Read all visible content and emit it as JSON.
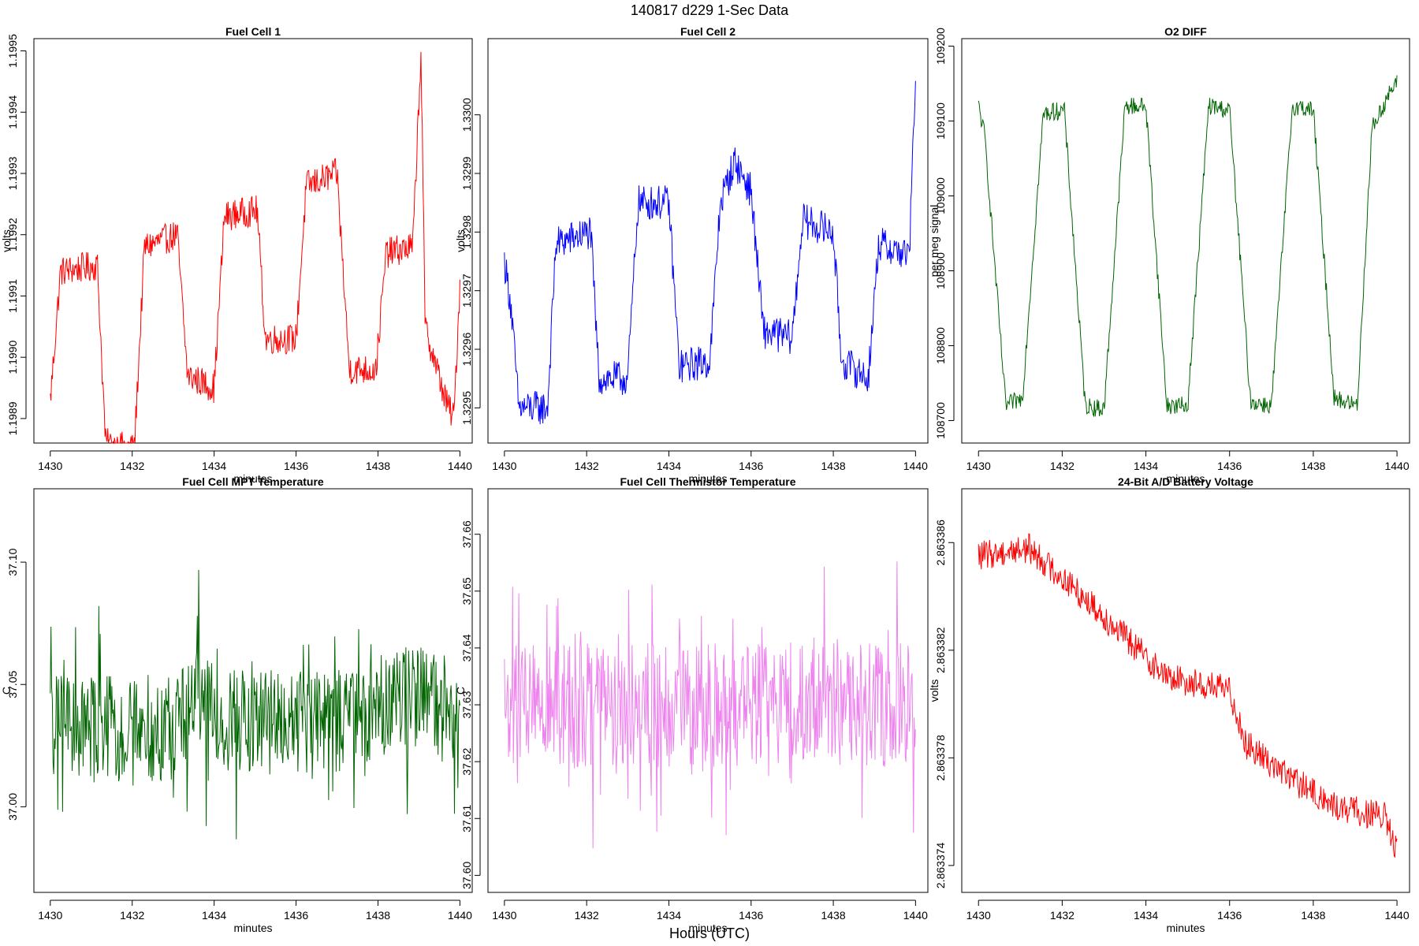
{
  "figure": {
    "title": "140817   d229   1-Sec Data",
    "bottom_label": "Hours (UTC)"
  },
  "chart_data": [
    {
      "type": "line",
      "title": "Fuel Cell 1",
      "xlabel": "minutes",
      "ylabel": "volts",
      "color": "#ff0000",
      "xlim": [
        1429.6,
        1440.3
      ],
      "ylim": [
        1.19886,
        1.19952
      ],
      "xticks": [
        1430,
        1432,
        1434,
        1436,
        1438,
        1440
      ],
      "yticks": [
        1.1989,
        1.199,
        1.1991,
        1.1992,
        1.1993,
        1.1994,
        1.1995
      ],
      "ytick_labels": [
        "1.1989",
        "1.1990",
        "1.1991",
        "1.1992",
        "1.1993",
        "1.1994",
        "1.1995"
      ],
      "n_points": 600,
      "noise": 2.5e-05,
      "segments": [
        [
          1430.0,
          1.19893
        ],
        [
          1430.25,
          1.19914
        ],
        [
          1431.15,
          1.19915
        ],
        [
          1431.35,
          1.19886
        ],
        [
          1432.05,
          1.19885
        ],
        [
          1432.3,
          1.19918
        ],
        [
          1433.1,
          1.1992
        ],
        [
          1433.35,
          1.19897
        ],
        [
          1434.0,
          1.19895
        ],
        [
          1434.25,
          1.19923
        ],
        [
          1435.05,
          1.19924
        ],
        [
          1435.25,
          1.19903
        ],
        [
          1436.0,
          1.19903
        ],
        [
          1436.25,
          1.19928
        ],
        [
          1437.0,
          1.1993
        ],
        [
          1437.3,
          1.19898
        ],
        [
          1437.95,
          1.19898
        ],
        [
          1438.2,
          1.19917
        ],
        [
          1438.85,
          1.19918
        ],
        [
          1439.05,
          1.1995
        ],
        [
          1439.15,
          1.19905
        ],
        [
          1439.65,
          1.19893
        ],
        [
          1439.85,
          1.1989
        ],
        [
          1440.0,
          1.19912
        ]
      ]
    },
    {
      "type": "line",
      "title": "Fuel Cell 2",
      "xlabel": "minutes",
      "ylabel": "volts",
      "color": "#0000ff",
      "xlim": [
        1429.6,
        1440.3
      ],
      "ylim": [
        1.32944,
        1.33013
      ],
      "xticks": [
        1430,
        1432,
        1434,
        1436,
        1438,
        1440
      ],
      "yticks": [
        1.3295,
        1.3296,
        1.3297,
        1.3298,
        1.3299,
        1.33
      ],
      "ytick_labels": [
        "1.3295",
        "1.3296",
        "1.3297",
        "1.3298",
        "1.3299",
        "1.3300"
      ],
      "n_points": 600,
      "noise": 3e-05,
      "segments": [
        [
          1430.0,
          1.32975
        ],
        [
          1430.15,
          1.32968
        ],
        [
          1430.35,
          1.3295
        ],
        [
          1431.05,
          1.3295
        ],
        [
          1431.25,
          1.32978
        ],
        [
          1432.1,
          1.3298
        ],
        [
          1432.3,
          1.32955
        ],
        [
          1433.0,
          1.32955
        ],
        [
          1433.25,
          1.32985
        ],
        [
          1434.0,
          1.32985
        ],
        [
          1434.25,
          1.32957
        ],
        [
          1435.0,
          1.32958
        ],
        [
          1435.25,
          1.32985
        ],
        [
          1435.6,
          1.32992
        ],
        [
          1436.0,
          1.32987
        ],
        [
          1436.3,
          1.32963
        ],
        [
          1437.0,
          1.32962
        ],
        [
          1437.25,
          1.32982
        ],
        [
          1438.0,
          1.3298
        ],
        [
          1438.2,
          1.32958
        ],
        [
          1438.85,
          1.32955
        ],
        [
          1439.1,
          1.32978
        ],
        [
          1439.85,
          1.32976
        ],
        [
          1440.0,
          1.33007
        ]
      ]
    },
    {
      "type": "line",
      "title": "O2 DIFF",
      "xlabel": "minutes",
      "ylabel": "per meg signal",
      "color": "#006400",
      "xlim": [
        1429.6,
        1440.3
      ],
      "ylim": [
        108670,
        109210
      ],
      "xticks": [
        1430,
        1432,
        1434,
        1436,
        1438,
        1440
      ],
      "yticks": [
        108700,
        108800,
        108900,
        109000,
        109100,
        109200
      ],
      "ytick_labels": [
        "108700",
        "108800",
        "108900",
        "109000",
        "109100",
        "109200"
      ],
      "n_points": 600,
      "noise": 12,
      "segments": [
        [
          1430.0,
          109120
        ],
        [
          1430.15,
          109080
        ],
        [
          1430.65,
          108720
        ],
        [
          1431.05,
          108730
        ],
        [
          1431.55,
          109110
        ],
        [
          1432.05,
          109115
        ],
        [
          1432.55,
          108720
        ],
        [
          1433.0,
          108715
        ],
        [
          1433.5,
          109120
        ],
        [
          1434.0,
          109120
        ],
        [
          1434.5,
          108720
        ],
        [
          1435.0,
          108720
        ],
        [
          1435.5,
          109120
        ],
        [
          1436.0,
          109115
        ],
        [
          1436.5,
          108725
        ],
        [
          1437.0,
          108720
        ],
        [
          1437.5,
          109120
        ],
        [
          1438.0,
          109115
        ],
        [
          1438.5,
          108730
        ],
        [
          1439.05,
          108720
        ],
        [
          1439.4,
          109090
        ],
        [
          1439.85,
          109140
        ],
        [
          1440.0,
          109150
        ]
      ]
    },
    {
      "type": "line",
      "title": "Fuel Cell MPT Temperature",
      "xlabel": "minutes",
      "ylabel": "C",
      "color": "#006400",
      "xlim": [
        1429.6,
        1440.3
      ],
      "ylim": [
        36.965,
        37.13
      ],
      "xticks": [
        1430,
        1432,
        1434,
        1436,
        1438,
        1440
      ],
      "yticks": [
        37.0,
        37.05,
        37.1
      ],
      "ytick_labels": [
        "37.00",
        "37.05",
        "37.10"
      ],
      "n_points": 600,
      "noise": 0.022,
      "spike_noise": 0.04,
      "segments": [
        [
          1430.0,
          37.032
        ],
        [
          1433.0,
          37.032
        ],
        [
          1433.6,
          37.045
        ],
        [
          1434.2,
          37.035
        ],
        [
          1437.8,
          37.035
        ],
        [
          1438.5,
          37.045
        ],
        [
          1440.0,
          37.04
        ]
      ]
    },
    {
      "type": "line",
      "title": "Fuel Cell Thermistor Temperature",
      "xlabel": "minutes",
      "ylabel": "C",
      "color": "#ee82ee",
      "xlim": [
        1429.6,
        1440.3
      ],
      "ylim": [
        37.597,
        37.668
      ],
      "xticks": [
        1430,
        1432,
        1434,
        1436,
        1438,
        1440
      ],
      "yticks": [
        37.6,
        37.61,
        37.62,
        37.63,
        37.64,
        37.65,
        37.66
      ],
      "ytick_labels": [
        "37.60",
        "37.61",
        "37.62",
        "37.63",
        "37.64",
        "37.65",
        "37.66"
      ],
      "n_points": 600,
      "noise": 0.011,
      "spike_noise": 0.02,
      "segments": [
        [
          1430.0,
          37.63
        ],
        [
          1440.0,
          37.63
        ]
      ]
    },
    {
      "type": "line",
      "title": "24-Bit A/D Battery Voltage",
      "xlabel": "minutes",
      "ylabel": "volts",
      "color": "#ff0000",
      "xlim": [
        1429.6,
        1440.3
      ],
      "ylim": [
        2.863373,
        2.863388
      ],
      "xticks": [
        1430,
        1432,
        1434,
        1436,
        1438,
        1440
      ],
      "yticks": [
        2.863374,
        2.863378,
        2.863382,
        2.863386
      ],
      "ytick_labels": [
        "2.863374",
        "2.863378",
        "2.863382",
        "2.863386"
      ],
      "n_points": 600,
      "noise": 5.5e-07,
      "segments": [
        [
          1430.0,
          2.8633855
        ],
        [
          1431.2,
          2.8633858
        ],
        [
          1432.5,
          2.863384
        ],
        [
          1433.5,
          2.8633825
        ],
        [
          1434.5,
          2.863381
        ],
        [
          1436.0,
          2.8633805
        ],
        [
          1436.4,
          2.8633785
        ],
        [
          1437.5,
          2.8633772
        ],
        [
          1438.5,
          2.8633762
        ],
        [
          1439.7,
          2.8633758
        ],
        [
          1440.0,
          2.8633745
        ]
      ]
    }
  ]
}
